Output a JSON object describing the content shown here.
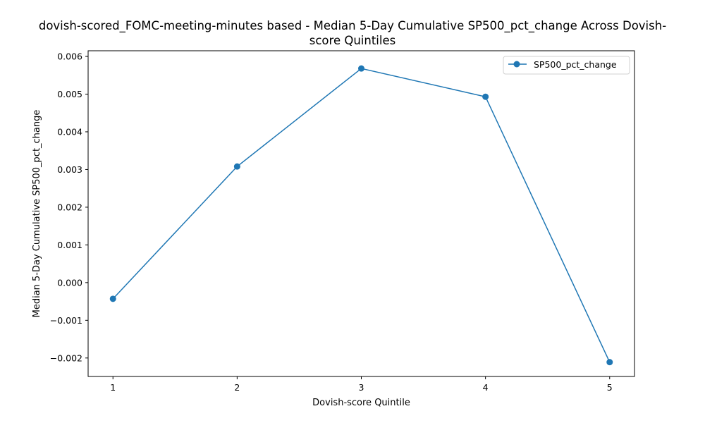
{
  "chart_data": {
    "type": "line",
    "title_line1": "dovish-scored_FOMC-meeting-minutes based - Median 5-Day Cumulative SP500_pct_change Across Dovish-",
    "title_line2": "score Quintiles",
    "xlabel": "Dovish-score Quintile",
    "ylabel": "Median 5-Day Cumulative SP500_pct_change",
    "categories": [
      "1",
      "2",
      "3",
      "4",
      "5"
    ],
    "x": [
      1,
      2,
      3,
      4,
      5
    ],
    "series": [
      {
        "name": "SP500_pct_change",
        "values": [
          -0.00043,
          0.00308,
          0.00568,
          0.00493,
          -0.00211
        ]
      }
    ],
    "yticks": [
      -0.002,
      -0.001,
      0.0,
      0.001,
      0.002,
      0.003,
      0.004,
      0.005,
      0.006
    ],
    "ytick_labels": [
      "−0.002",
      "−0.001",
      "0.000",
      "0.001",
      "0.002",
      "0.003",
      "0.004",
      "0.005",
      "0.006"
    ],
    "ylim": [
      -0.00249,
      0.00615
    ],
    "xlim": [
      0.8,
      5.2
    ],
    "legend_position": "top-right",
    "grid": false,
    "line_color": "#1f77b4"
  }
}
